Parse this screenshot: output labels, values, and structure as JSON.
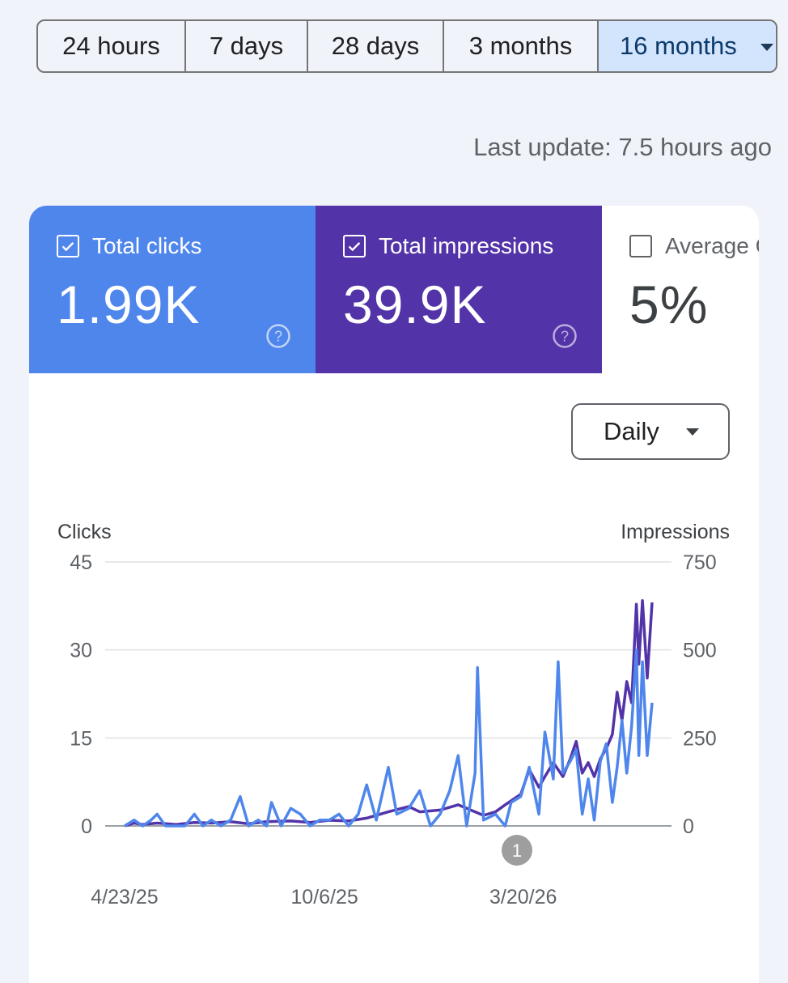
{
  "date_range": {
    "options": [
      "24 hours",
      "7 days",
      "28 days",
      "3 months",
      "16 months"
    ],
    "selected": "16 months"
  },
  "last_update": "Last update: 7.5 hours ago",
  "metrics": {
    "clicks": {
      "label": "Total clicks",
      "value": "1.99K",
      "checked": true,
      "color": "#4f86ec"
    },
    "impressions": {
      "label": "Total impressions",
      "value": "39.9K",
      "checked": true,
      "color": "#5334a8"
    },
    "ctr": {
      "label": "Average CTR",
      "value": "5%",
      "checked": false
    }
  },
  "granularity": {
    "selected": "Daily"
  },
  "chart_data": {
    "type": "line",
    "left_axis_title": "Clicks",
    "right_axis_title": "Impressions",
    "left_ticks": [
      "45",
      "30",
      "15",
      "0"
    ],
    "right_ticks": [
      "750",
      "500",
      "250",
      "0"
    ],
    "ylim_left": [
      0,
      45
    ],
    "ylim_right": [
      0,
      750
    ],
    "x_tick_labels": [
      "4/23/25",
      "10/6/25",
      "3/20/26"
    ],
    "annotation_badge": "1",
    "x_range": [
      "4/23/25",
      "7/5/26"
    ],
    "series": [
      {
        "name": "Clicks",
        "axis": "left",
        "color": "#4f86ec",
        "points": [
          [
            "4/23/25",
            0
          ],
          [
            "5/1/25",
            1
          ],
          [
            "5/8/25",
            0
          ],
          [
            "5/15/25",
            1
          ],
          [
            "5/20/25",
            2
          ],
          [
            "5/27/25",
            0
          ],
          [
            "6/5/25",
            0
          ],
          [
            "6/12/25",
            0
          ],
          [
            "6/20/25",
            2
          ],
          [
            "6/27/25",
            0
          ],
          [
            "7/4/25",
            1
          ],
          [
            "7/12/25",
            0
          ],
          [
            "7/20/25",
            1
          ],
          [
            "7/28/25",
            5
          ],
          [
            "8/4/25",
            0
          ],
          [
            "8/12/25",
            1
          ],
          [
            "8/19/25",
            0
          ],
          [
            "8/23/25",
            4
          ],
          [
            "8/31/25",
            0
          ],
          [
            "9/8/25",
            3
          ],
          [
            "9/16/25",
            2
          ],
          [
            "9/24/25",
            0
          ],
          [
            "10/2/25",
            1
          ],
          [
            "10/10/25",
            1
          ],
          [
            "10/18/25",
            2
          ],
          [
            "10/26/25",
            0
          ],
          [
            "11/3/25",
            2
          ],
          [
            "11/10/25",
            7
          ],
          [
            "11/18/25",
            1
          ],
          [
            "11/28/25",
            10
          ],
          [
            "12/5/25",
            2
          ],
          [
            "12/15/25",
            3
          ],
          [
            "12/24/25",
            6
          ],
          [
            "1/2/26",
            0
          ],
          [
            "1/10/26",
            2
          ],
          [
            "1/18/26",
            6
          ],
          [
            "1/25/26",
            12
          ],
          [
            "2/1/26",
            0
          ],
          [
            "2/8/26",
            9
          ],
          [
            "2/10/26",
            27
          ],
          [
            "2/15/26",
            1
          ],
          [
            "2/25/26",
            2
          ],
          [
            "3/5/26",
            0
          ],
          [
            "3/10/26",
            4
          ],
          [
            "3/18/26",
            5
          ],
          [
            "3/25/26",
            10
          ],
          [
            "4/2/26",
            2
          ],
          [
            "4/7/26",
            16
          ],
          [
            "4/14/26",
            8
          ],
          [
            "4/18/26",
            28
          ],
          [
            "4/22/26",
            9
          ],
          [
            "4/28/26",
            11
          ],
          [
            "5/3/26",
            13
          ],
          [
            "5/8/26",
            2
          ],
          [
            "5/13/26",
            8
          ],
          [
            "5/18/26",
            1
          ],
          [
            "5/23/26",
            11
          ],
          [
            "5/28/26",
            14
          ],
          [
            "6/2/26",
            4
          ],
          [
            "6/6/26",
            10
          ],
          [
            "6/10/26",
            18
          ],
          [
            "6/14/26",
            9
          ],
          [
            "6/18/26",
            17
          ],
          [
            "6/22/26",
            30
          ],
          [
            "6/24/26",
            12
          ],
          [
            "6/27/26",
            28
          ],
          [
            "7/1/26",
            12
          ],
          [
            "7/5/26",
            21
          ]
        ]
      },
      {
        "name": "Impressions",
        "axis": "right",
        "color": "#5334a8",
        "points": [
          [
            "4/23/25",
            0
          ],
          [
            "5/1/25",
            8
          ],
          [
            "5/8/25",
            4
          ],
          [
            "5/20/25",
            8
          ],
          [
            "6/5/25",
            4
          ],
          [
            "6/20/25",
            10
          ],
          [
            "7/4/25",
            8
          ],
          [
            "7/20/25",
            12
          ],
          [
            "8/4/25",
            6
          ],
          [
            "8/19/25",
            12
          ],
          [
            "9/8/25",
            14
          ],
          [
            "9/24/25",
            10
          ],
          [
            "10/10/25",
            16
          ],
          [
            "10/26/25",
            14
          ],
          [
            "11/10/25",
            22
          ],
          [
            "11/28/25",
            40
          ],
          [
            "12/15/25",
            55
          ],
          [
            "12/24/25",
            40
          ],
          [
            "1/10/26",
            45
          ],
          [
            "1/25/26",
            60
          ],
          [
            "2/8/26",
            40
          ],
          [
            "2/15/26",
            30
          ],
          [
            "2/25/26",
            40
          ],
          [
            "3/5/26",
            60
          ],
          [
            "3/18/26",
            90
          ],
          [
            "3/25/26",
            160
          ],
          [
            "4/2/26",
            110
          ],
          [
            "4/7/26",
            140
          ],
          [
            "4/14/26",
            180
          ],
          [
            "4/22/26",
            140
          ],
          [
            "4/28/26",
            190
          ],
          [
            "5/3/26",
            240
          ],
          [
            "5/8/26",
            150
          ],
          [
            "5/13/26",
            180
          ],
          [
            "5/18/26",
            140
          ],
          [
            "5/23/26",
            190
          ],
          [
            "5/28/26",
            220
          ],
          [
            "6/2/26",
            260
          ],
          [
            "6/6/26",
            380
          ],
          [
            "6/10/26",
            300
          ],
          [
            "6/14/26",
            410
          ],
          [
            "6/18/26",
            350
          ],
          [
            "6/22/26",
            630
          ],
          [
            "6/24/26",
            460
          ],
          [
            "6/27/26",
            640
          ],
          [
            "7/1/26",
            420
          ],
          [
            "7/5/26",
            635
          ]
        ]
      }
    ]
  }
}
